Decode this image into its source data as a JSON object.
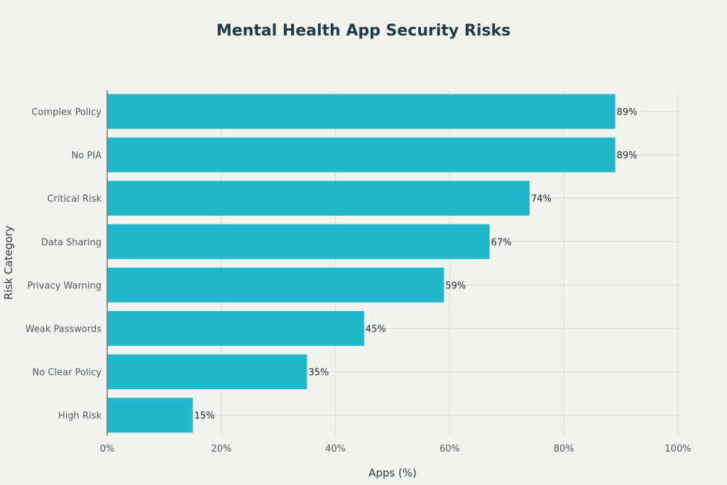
{
  "chart_data": {
    "type": "bar",
    "orientation": "horizontal",
    "title": "Mental Health App Security Risks",
    "xlabel": "Apps (%)",
    "ylabel": "Risk Category",
    "xlim": [
      0,
      100
    ],
    "x_ticks": [
      "0%",
      "20%",
      "40%",
      "60%",
      "80%",
      "100%"
    ],
    "x_tick_values": [
      0,
      20,
      40,
      60,
      80,
      100
    ],
    "categories": [
      "Complex Policy",
      "No PIA",
      "Critical Risk",
      "Data Sharing",
      "Privacy Warning",
      "Weak Passwords",
      "No Clear Policy",
      "High Risk"
    ],
    "values": [
      89,
      89,
      74,
      67,
      59,
      45,
      35,
      15
    ],
    "value_labels": [
      "89%",
      "89%",
      "74%",
      "67%",
      "59%",
      "45%",
      "35%",
      "15%"
    ],
    "grid": true,
    "legend": "none",
    "bar_color": "#22b8cc"
  }
}
